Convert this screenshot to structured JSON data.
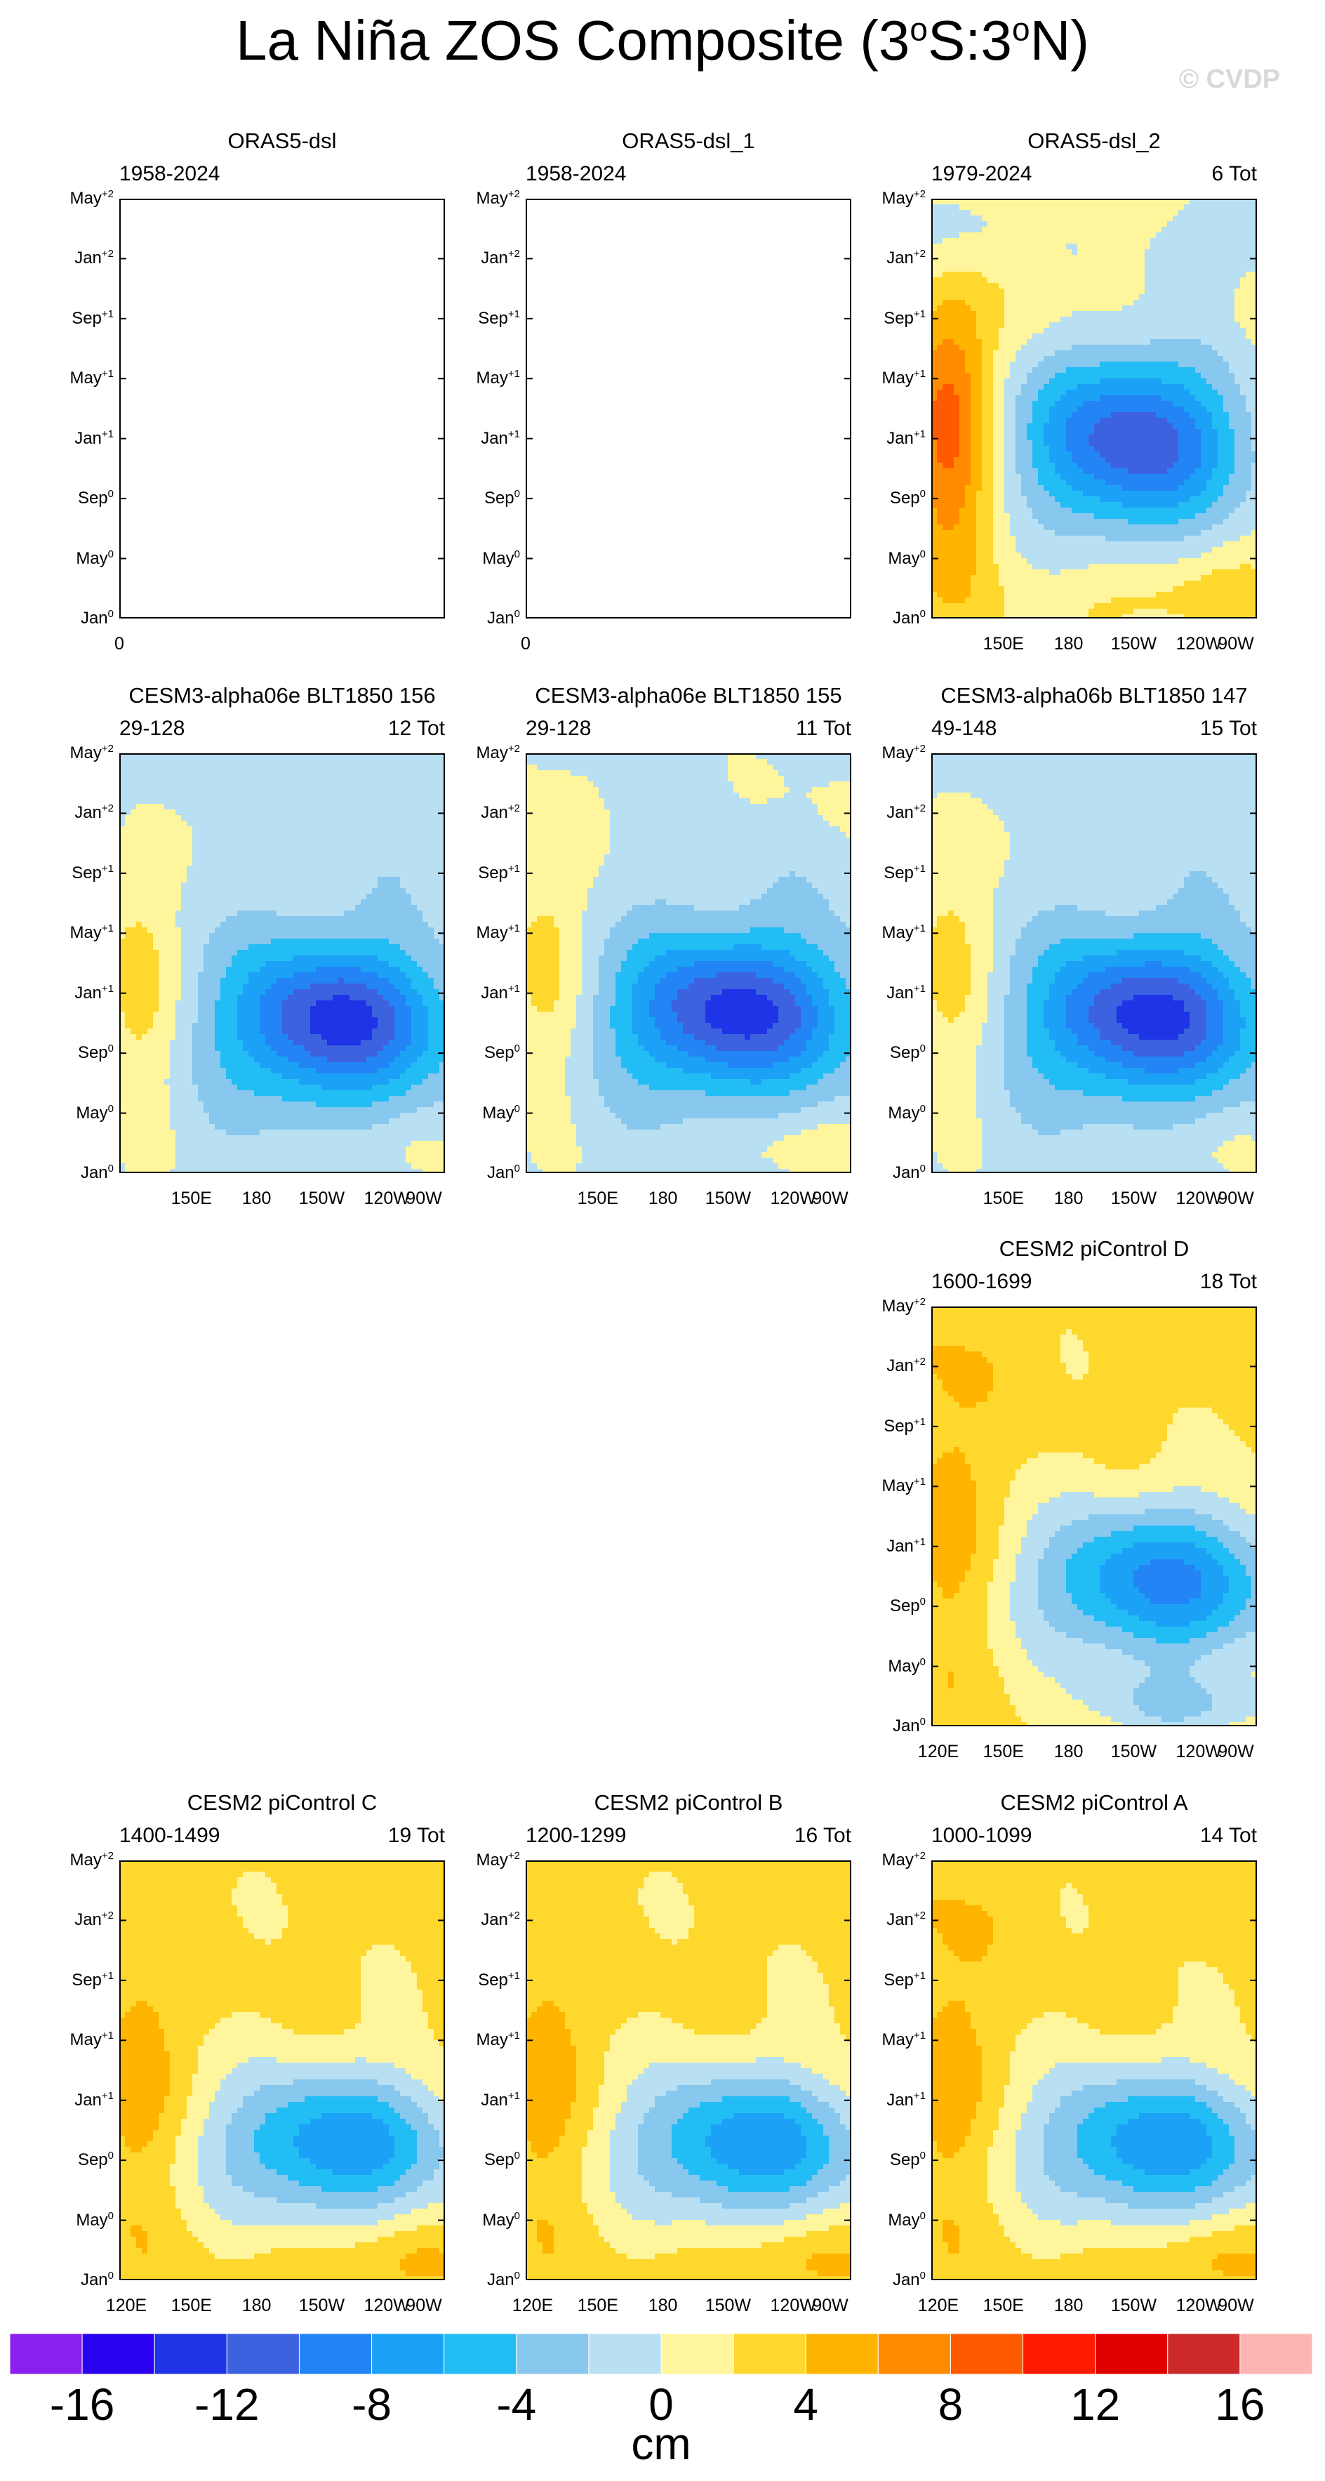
{
  "title_main": "La Niña ZOS Composite (3",
  "title_deg": "o",
  "title_mid": "S:3",
  "title_end": "N)",
  "watermark": "© CVDP",
  "chart_data": {
    "type": "heatmap",
    "variable": "ZOS",
    "y_ticks": [
      {
        "base": "May",
        "sup": "+2"
      },
      {
        "base": "Jan",
        "sup": "+2"
      },
      {
        "base": "Sep",
        "sup": "+1"
      },
      {
        "base": "May",
        "sup": "+1"
      },
      {
        "base": "Jan",
        "sup": "+1"
      },
      {
        "base": "Sep",
        "sup": "0"
      },
      {
        "base": "May",
        "sup": "0"
      },
      {
        "base": "Jan",
        "sup": "0"
      }
    ],
    "x_ticks": [
      "120E",
      "150E",
      "180",
      "150W",
      "120W",
      "90W"
    ],
    "x_ticks_no120": [
      "150E",
      "180",
      "150W",
      "120W",
      "90W"
    ],
    "empty_xtick": "0",
    "panels": [
      {
        "name": "ORAS5-dsl",
        "years": "1958-2024",
        "count": "",
        "empty": true
      },
      {
        "name": "ORAS5-dsl_1",
        "years": "1958-2024",
        "count": "",
        "empty": true
      },
      {
        "name": "ORAS5-dsl_2",
        "years": "1979-2024",
        "count": "6 Tot",
        "empty": false
      },
      {
        "name": "CESM3-alpha06e BLT1850 156",
        "years": "29-128",
        "count": "12 Tot",
        "empty": false
      },
      {
        "name": "CESM3-alpha06e BLT1850 155",
        "years": "29-128",
        "count": "11 Tot",
        "empty": false
      },
      {
        "name": "CESM3-alpha06b BLT1850 147",
        "years": "49-148",
        "count": "15 Tot",
        "empty": false
      },
      {
        "name": "CESM2 piControl D",
        "years": "1600-1699",
        "count": "18 Tot",
        "empty": false
      },
      {
        "name": "CESM2 piControl C",
        "years": "1400-1499",
        "count": "19 Tot",
        "empty": false
      },
      {
        "name": "CESM2 piControl B",
        "years": "1200-1299",
        "count": "16 Tot",
        "empty": false
      },
      {
        "name": "CESM2 piControl A",
        "years": "1000-1099",
        "count": "14 Tot",
        "empty": false
      }
    ],
    "colorbar": {
      "colors": [
        "#8a1ff0",
        "#2a00f0",
        "#1e34e6",
        "#3c62e0",
        "#2384f5",
        "#1ba2f7",
        "#23bdf5",
        "#88c7ee",
        "#b8e0f2",
        "#fff59c",
        "#ffd82e",
        "#ffb400",
        "#ff8c00",
        "#ff5a00",
        "#ff1a00",
        "#e10000",
        "#cc2a2a",
        "#ffb4b4"
      ],
      "labels": [
        "-16",
        "-12",
        "-8",
        "-4",
        "0",
        "4",
        "8",
        "12",
        "16"
      ],
      "unit": "cm"
    }
  }
}
